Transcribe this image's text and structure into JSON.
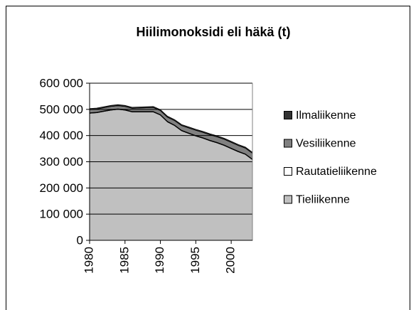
{
  "chart_data": {
    "type": "stacked-area",
    "title": "Hiilimonoksidi eli häkä (t)",
    "x": [
      1980,
      1981,
      1982,
      1983,
      1984,
      1985,
      1986,
      1987,
      1988,
      1989,
      1990,
      1991,
      1992,
      1993,
      1994,
      1995,
      1996,
      1997,
      1998,
      1999,
      2000,
      2001,
      2002,
      2003
    ],
    "xlim": [
      1980,
      2003
    ],
    "xticks": [
      1980,
      1985,
      1990,
      1995,
      2000
    ],
    "ylim": [
      0,
      600000
    ],
    "yticks": [
      0,
      {
        "value": 100000,
        "label": "100 000"
      },
      {
        "value": 200000,
        "label": "200 000"
      },
      {
        "value": 300000,
        "label": "300 000"
      },
      {
        "value": 400000,
        "label": "400 000"
      },
      {
        "value": 500000,
        "label": "500 000"
      },
      {
        "value": 600000,
        "label": "600 000"
      }
    ],
    "grid": true,
    "legend": "right",
    "series": [
      {
        "name": "Tieliikenne",
        "color": "#c0c0c0",
        "values": [
          485000,
          487000,
          492000,
          497000,
          500000,
          497000,
          490000,
          490000,
          490000,
          490000,
          478000,
          452000,
          438000,
          418000,
          408000,
          398000,
          390000,
          380000,
          372000,
          362000,
          350000,
          338000,
          328000,
          308000
        ]
      },
      {
        "name": "Rautatieliikenne",
        "color": "#ffffff",
        "values": [
          2000,
          2000,
          2000,
          2000,
          2000,
          2000,
          2000,
          2000,
          2000,
          2000,
          2000,
          2000,
          2000,
          2000,
          2000,
          2000,
          2000,
          2000,
          2000,
          2000,
          2000,
          2000,
          2000,
          2000
        ]
      },
      {
        "name": "Vesiliikenne",
        "color": "#808080",
        "values": [
          12000,
          12000,
          12000,
          12000,
          12000,
          12000,
          12000,
          13000,
          14000,
          15000,
          15000,
          16000,
          17000,
          18000,
          19000,
          20000,
          20000,
          21000,
          21000,
          22000,
          22000,
          22000,
          22000,
          22000
        ]
      },
      {
        "name": "Ilmaliikenne",
        "color": "#333333",
        "values": [
          4000,
          4000,
          4000,
          4000,
          4000,
          4000,
          4000,
          4000,
          4000,
          4000,
          4000,
          4000,
          4000,
          4000,
          4000,
          4000,
          4000,
          4000,
          4000,
          4000,
          4000,
          4000,
          4000,
          4000
        ]
      }
    ]
  }
}
